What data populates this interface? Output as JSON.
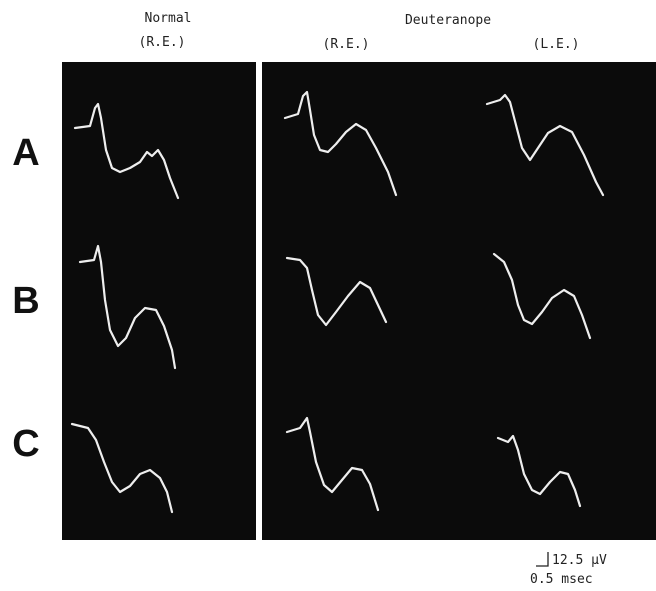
{
  "columns": {
    "group_1": {
      "title": "Normal",
      "eye": "(R.E.)"
    },
    "group_2": {
      "title": "Deuteranope",
      "eyes": [
        "(R.E.)",
        "(L.E.)"
      ]
    }
  },
  "rows": [
    "A",
    "B",
    "C"
  ],
  "scale_bar": {
    "amplitude": "12.5 µV",
    "time": "0.5 msec"
  }
}
